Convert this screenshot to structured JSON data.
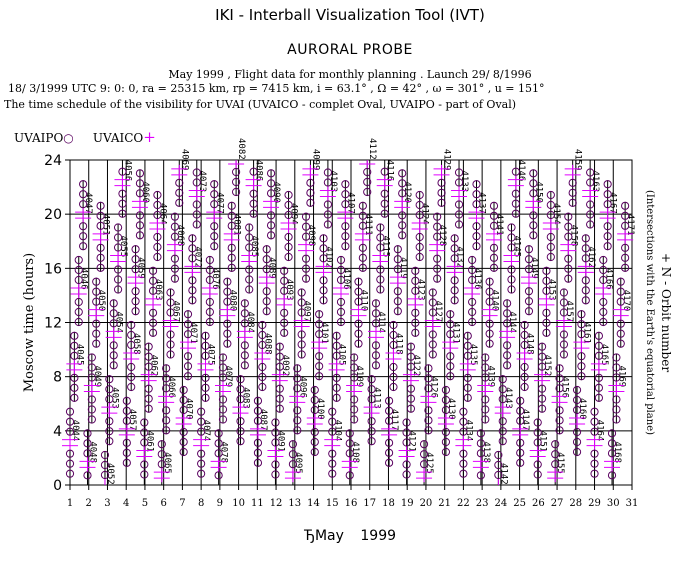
{
  "header": {
    "app_title": "IKI - Interball Visualization Tool (IVT)",
    "subtitle": "AURORAL PROBE",
    "info_line": "May       1999 ,  Flight data for monthly planning .   Launch 29/ 8/1996",
    "orbit_line": "18/ 3/1999 UTC  9: 0: 0, ra =  25315 km, rp =    7415 km, i = 63.1°  , Ω =  42° , ω = 301° , u = 151°",
    "schedule_line": "The time schedule of the visibility for UVAI (UVAICO - complet Oval, UVAIPO - part of Oval)"
  },
  "legend": {
    "po_label": "UVAIPO",
    "po_symbol": "○",
    "co_label": "UVAICO",
    "co_symbol": "+"
  },
  "footer": {
    "month": "ЂMay",
    "year": "1999"
  },
  "colors": {
    "po_marker": "#5a0060",
    "co_marker": "#e100ff",
    "grid": "#000000"
  },
  "chart_data": {
    "type": "scatter",
    "ylabel": "Moscow time (hours)",
    "right_label_1": "+ N - Orbit number",
    "right_label_2": "(Intersections with the Earth's equatorial plane)",
    "xlabel": "",
    "x_ticks": [
      1,
      2,
      3,
      4,
      5,
      6,
      7,
      8,
      9,
      10,
      11,
      12,
      13,
      14,
      15,
      16,
      17,
      18,
      19,
      20,
      21,
      22,
      23,
      24,
      25,
      26,
      27,
      28,
      29,
      30,
      31
    ],
    "xlim": [
      1,
      31
    ],
    "y_ticks": [
      0,
      4,
      8,
      12,
      16,
      20,
      24
    ],
    "ylim": [
      0,
      24
    ],
    "grid": true,
    "orbit_period_hours": 5.6,
    "first_orbit_number": 4044,
    "first_orbit_x": 1.0,
    "first_orbit_hour": 3.2,
    "orbit_numbers": [
      4044,
      4045,
      4046,
      4047,
      4048,
      4049,
      4050,
      4051,
      4052,
      4053,
      4054,
      4055,
      4056,
      4057,
      4058,
      4059,
      4060,
      4061,
      4062,
      4063,
      4064,
      4065,
      4066,
      4067,
      4068,
      4069,
      4070,
      4071,
      4072,
      4073,
      4074,
      4075,
      4076,
      4077,
      4078,
      4079,
      4080,
      4081,
      4082,
      4083,
      4084,
      4085,
      4086,
      4087,
      4088,
      4089,
      4090,
      4091,
      4092,
      4093,
      4094,
      4095,
      4096,
      4097,
      4098,
      4099,
      4100,
      4101,
      4102,
      4103,
      4104,
      4105,
      4106,
      4107,
      4108,
      4109,
      4110,
      4111,
      4112,
      4113,
      4114,
      4115,
      4116,
      4117,
      4118,
      4119,
      4120,
      4121,
      4122,
      4123,
      4124,
      4125,
      4126,
      4127,
      4128,
      4129,
      4130,
      4131,
      4132,
      4133,
      4134,
      4135,
      4136,
      4137,
      4138,
      4139,
      4140,
      4141,
      4142,
      4143,
      4144,
      4145,
      4146,
      4147,
      4148,
      4149,
      4150,
      4151,
      4152,
      4153,
      4154,
      4155,
      4156,
      4157,
      4158,
      4159,
      4160,
      4161,
      4162,
      4163,
      4164,
      4165,
      4166,
      4167,
      4168,
      4169,
      4170,
      4171
    ],
    "series": [
      {
        "name": "UVAIPO",
        "marker": "circle"
      },
      {
        "name": "UVAICO",
        "marker": "plus"
      }
    ]
  }
}
